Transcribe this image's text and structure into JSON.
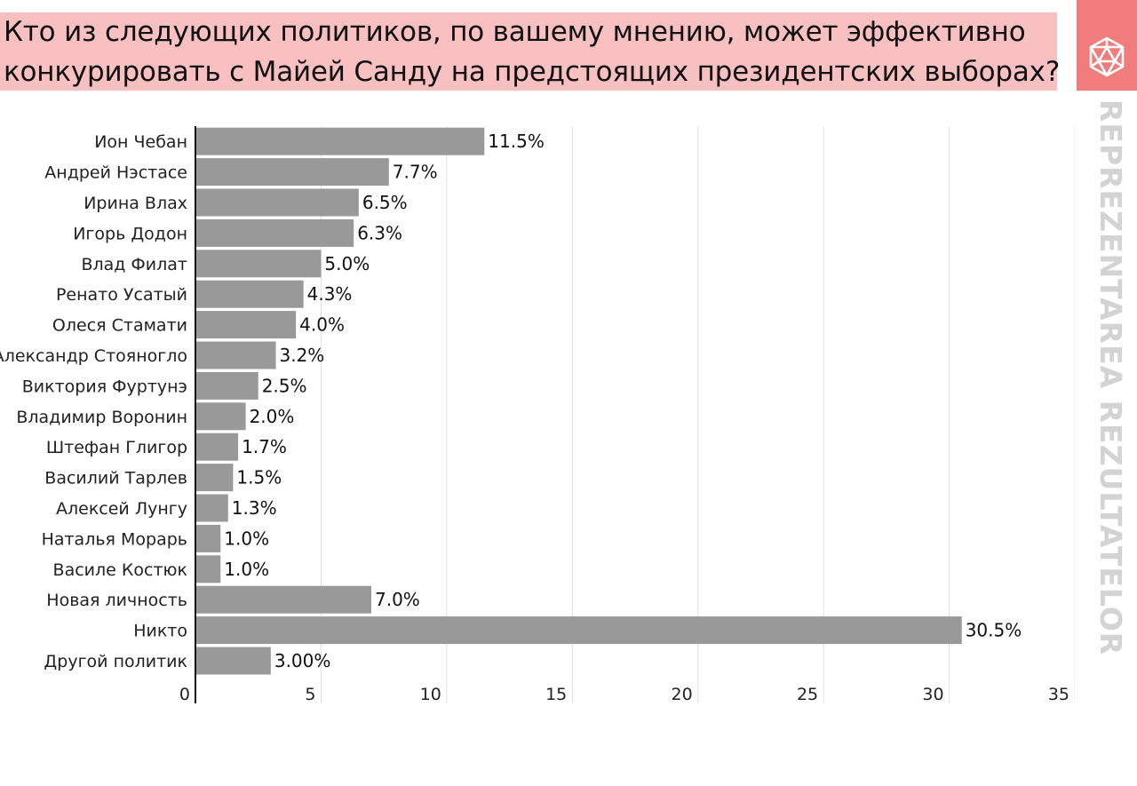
{
  "header": {
    "title_line1": "Кто из следующих политиков, по вашему мнению, может эффективно",
    "title_line2": "конкурировать с Майей Санду на предстоящих президентских выборах?"
  },
  "brand": {
    "name": "REPREZENTAREA REZULTATELOR",
    "logo_icon": "d20-dice-icon",
    "accent_color": "#f07c7c",
    "title_bg_color": "#f8c0c0"
  },
  "chart_data": {
    "type": "bar",
    "orientation": "horizontal",
    "categories": [
      "Ион Чебан",
      "Андрей Нэстасе",
      "Ирина Влах",
      "Игорь Додон",
      "Влад Филат",
      "Ренато Усатый",
      "Олеся Стамати",
      "Александр Стояногло",
      "Виктория Фуртунэ",
      "Владимир Воронин",
      "Штефан Глигор",
      "Василий Тарлев",
      "Алексей Лунгу",
      "Наталья Морарь",
      "Василе Костюк",
      "Новая личность",
      "Никто",
      "Другой политик"
    ],
    "values": [
      11.5,
      7.7,
      6.5,
      6.3,
      5.0,
      4.3,
      4.0,
      3.2,
      2.5,
      2.0,
      1.7,
      1.5,
      1.3,
      1.0,
      1.0,
      7.0,
      30.5,
      3.0
    ],
    "data_labels": [
      "11.5%",
      "7.7%",
      "6.5%",
      "6.3%",
      "5.0%",
      "4.3%",
      "4.0%",
      "3.2%",
      "2.5%",
      "2.0%",
      "1.7%",
      "1.5%",
      "1.3%",
      "1.0%",
      "1.0%",
      "7.0%",
      "30.5%",
      "3.00%"
    ],
    "xlim": [
      0,
      35
    ],
    "x_ticks": [
      0,
      5,
      10,
      15,
      20,
      25,
      30,
      35
    ],
    "x_tick_labels": [
      "0",
      "5",
      "10",
      "15",
      "20",
      "25",
      "30",
      "35"
    ],
    "grid": true,
    "bar_color": "#999999",
    "xlabel": "",
    "ylabel": ""
  }
}
